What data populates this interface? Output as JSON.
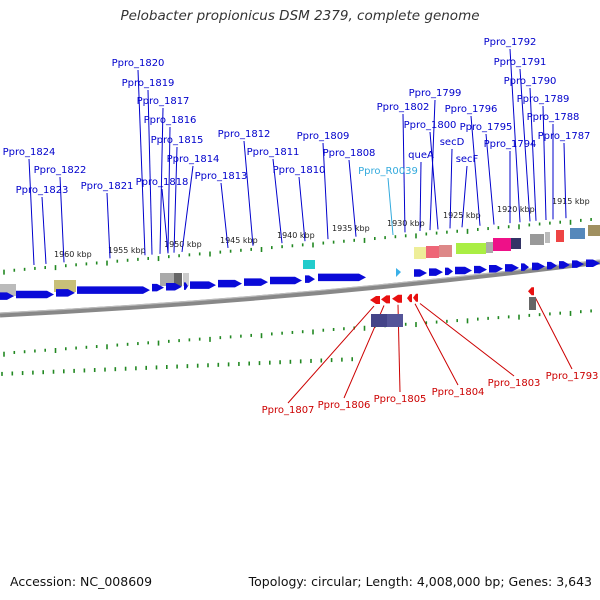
{
  "title": "Pelobacter propionicus DSM 2379, complete genome",
  "footer": {
    "accession": "Accession: NC_008609",
    "summary": "Topology: circular; Length: 4,008,000 bp; Genes: 3,643"
  },
  "colors": {
    "forward_gene": "#0a0ad8",
    "reverse_gene": "#e81010",
    "rna_gene": "#3ab0e8",
    "forward_label": "#0000cc",
    "reverse_label": "#cc0000",
    "rna_label": "#33aadd",
    "backbone": "#888888",
    "tick": "#228822"
  },
  "ruler": {
    "unit": "kbp",
    "labels": [
      "1960 kbp",
      "1955 kbp",
      "1950 kbp",
      "1945 kbp",
      "1940 kbp",
      "1935 kbp",
      "1930 kbp",
      "1925 kbp",
      "1920 kbp",
      "1915 kbp"
    ]
  },
  "genes_forward": [
    {
      "name": "Ppro_1824"
    },
    {
      "name": "Ppro_1823"
    },
    {
      "name": "Ppro_1822"
    },
    {
      "name": "Ppro_1821"
    },
    {
      "name": "Ppro_1820"
    },
    {
      "name": "Ppro_1819"
    },
    {
      "name": "Ppro_1818"
    },
    {
      "name": "Ppro_1817"
    },
    {
      "name": "Ppro_1816"
    },
    {
      "name": "Ppro_1815"
    },
    {
      "name": "Ppro_1814"
    },
    {
      "name": "Ppro_1813"
    },
    {
      "name": "Ppro_1812"
    },
    {
      "name": "Ppro_1811"
    },
    {
      "name": "Ppro_1810"
    },
    {
      "name": "Ppro_1809"
    },
    {
      "name": "Ppro_1808"
    },
    {
      "name": "Ppro_1802"
    },
    {
      "name": "queA"
    },
    {
      "name": "Ppro_1799"
    },
    {
      "name": "Ppro_1800"
    },
    {
      "name": "secD"
    },
    {
      "name": "secF"
    },
    {
      "name": "Ppro_1796"
    },
    {
      "name": "Ppro_1795"
    },
    {
      "name": "Ppro_1794"
    },
    {
      "name": "Ppro_1792"
    },
    {
      "name": "Ppro_1791"
    },
    {
      "name": "Ppro_1790"
    },
    {
      "name": "Ppro_1789"
    },
    {
      "name": "Ppro_1788"
    },
    {
      "name": "Ppro_1787"
    }
  ],
  "genes_rna": [
    {
      "name": "Ppro_R0039"
    }
  ],
  "genes_reverse": [
    {
      "name": "Ppro_1807"
    },
    {
      "name": "Ppro_1806"
    },
    {
      "name": "Ppro_1805"
    },
    {
      "name": "Ppro_1804"
    },
    {
      "name": "Ppro_1803"
    },
    {
      "name": "Ppro_1793"
    }
  ]
}
